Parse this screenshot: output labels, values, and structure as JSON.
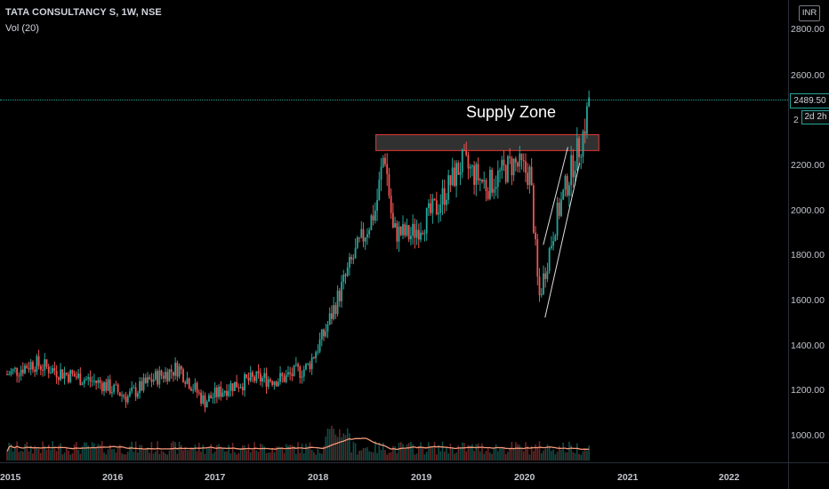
{
  "symbol": {
    "title": "TATA CONSULTANCY S, 1W, NSE",
    "volume_indicator": "Vol (20)"
  },
  "price_scale": {
    "currency": "INR",
    "ticks": [
      "2800.00",
      "2600.00",
      "2200.00",
      "2000.00",
      "1800.00",
      "1600.00",
      "1400.00",
      "1200.00",
      "1000.00"
    ],
    "partial_tick": "2",
    "last_price": "2489.50",
    "countdown": "2d 2h"
  },
  "time_scale": {
    "ticks": [
      "2015",
      "2016",
      "2017",
      "2018",
      "2019",
      "2020",
      "2021",
      "2022"
    ]
  },
  "annotations": {
    "supply_zone_label": "Supply Zone"
  },
  "colors": {
    "up": "#26a69a",
    "down": "#ef5350",
    "zone_border": "#e53935",
    "zone_fill": "#3a3a3a",
    "volume_ma": "#f59a7a",
    "trendline": "#e0e0e0"
  },
  "chart_data": {
    "type": "candlestick",
    "interval": "1W",
    "ylim": [
      900,
      2900
    ],
    "last_price": 2489.5,
    "supply_zone": {
      "from": "2018-08",
      "to": "2020-10",
      "low": 2255,
      "high": 2325
    },
    "price_path": [
      [
        "2015-01",
        1270
      ],
      [
        "2015-04",
        1320
      ],
      [
        "2015-08",
        1270
      ],
      [
        "2015-12",
        1230
      ],
      [
        "2016-03",
        1170
      ],
      [
        "2016-06",
        1250
      ],
      [
        "2016-09",
        1300
      ],
      [
        "2016-12",
        1150
      ],
      [
        "2017-03",
        1220
      ],
      [
        "2017-06",
        1250
      ],
      [
        "2017-09",
        1250
      ],
      [
        "2017-12",
        1300
      ],
      [
        "2018-02",
        1450
      ],
      [
        "2018-05",
        1750
      ],
      [
        "2018-08",
        2000
      ],
      [
        "2018-09",
        2260
      ],
      [
        "2018-10",
        1900
      ],
      [
        "2018-12",
        1880
      ],
      [
        "2019-03",
        2000
      ],
      [
        "2019-06",
        2200
      ],
      [
        "2019-09",
        2100
      ],
      [
        "2019-12",
        2200
      ],
      [
        "2020-02",
        2150
      ],
      [
        "2020-03",
        1600
      ],
      [
        "2020-05",
        1950
      ],
      [
        "2020-07",
        2200
      ],
      [
        "2020-08",
        2300
      ],
      [
        "2020-09",
        2489.5
      ]
    ]
  }
}
